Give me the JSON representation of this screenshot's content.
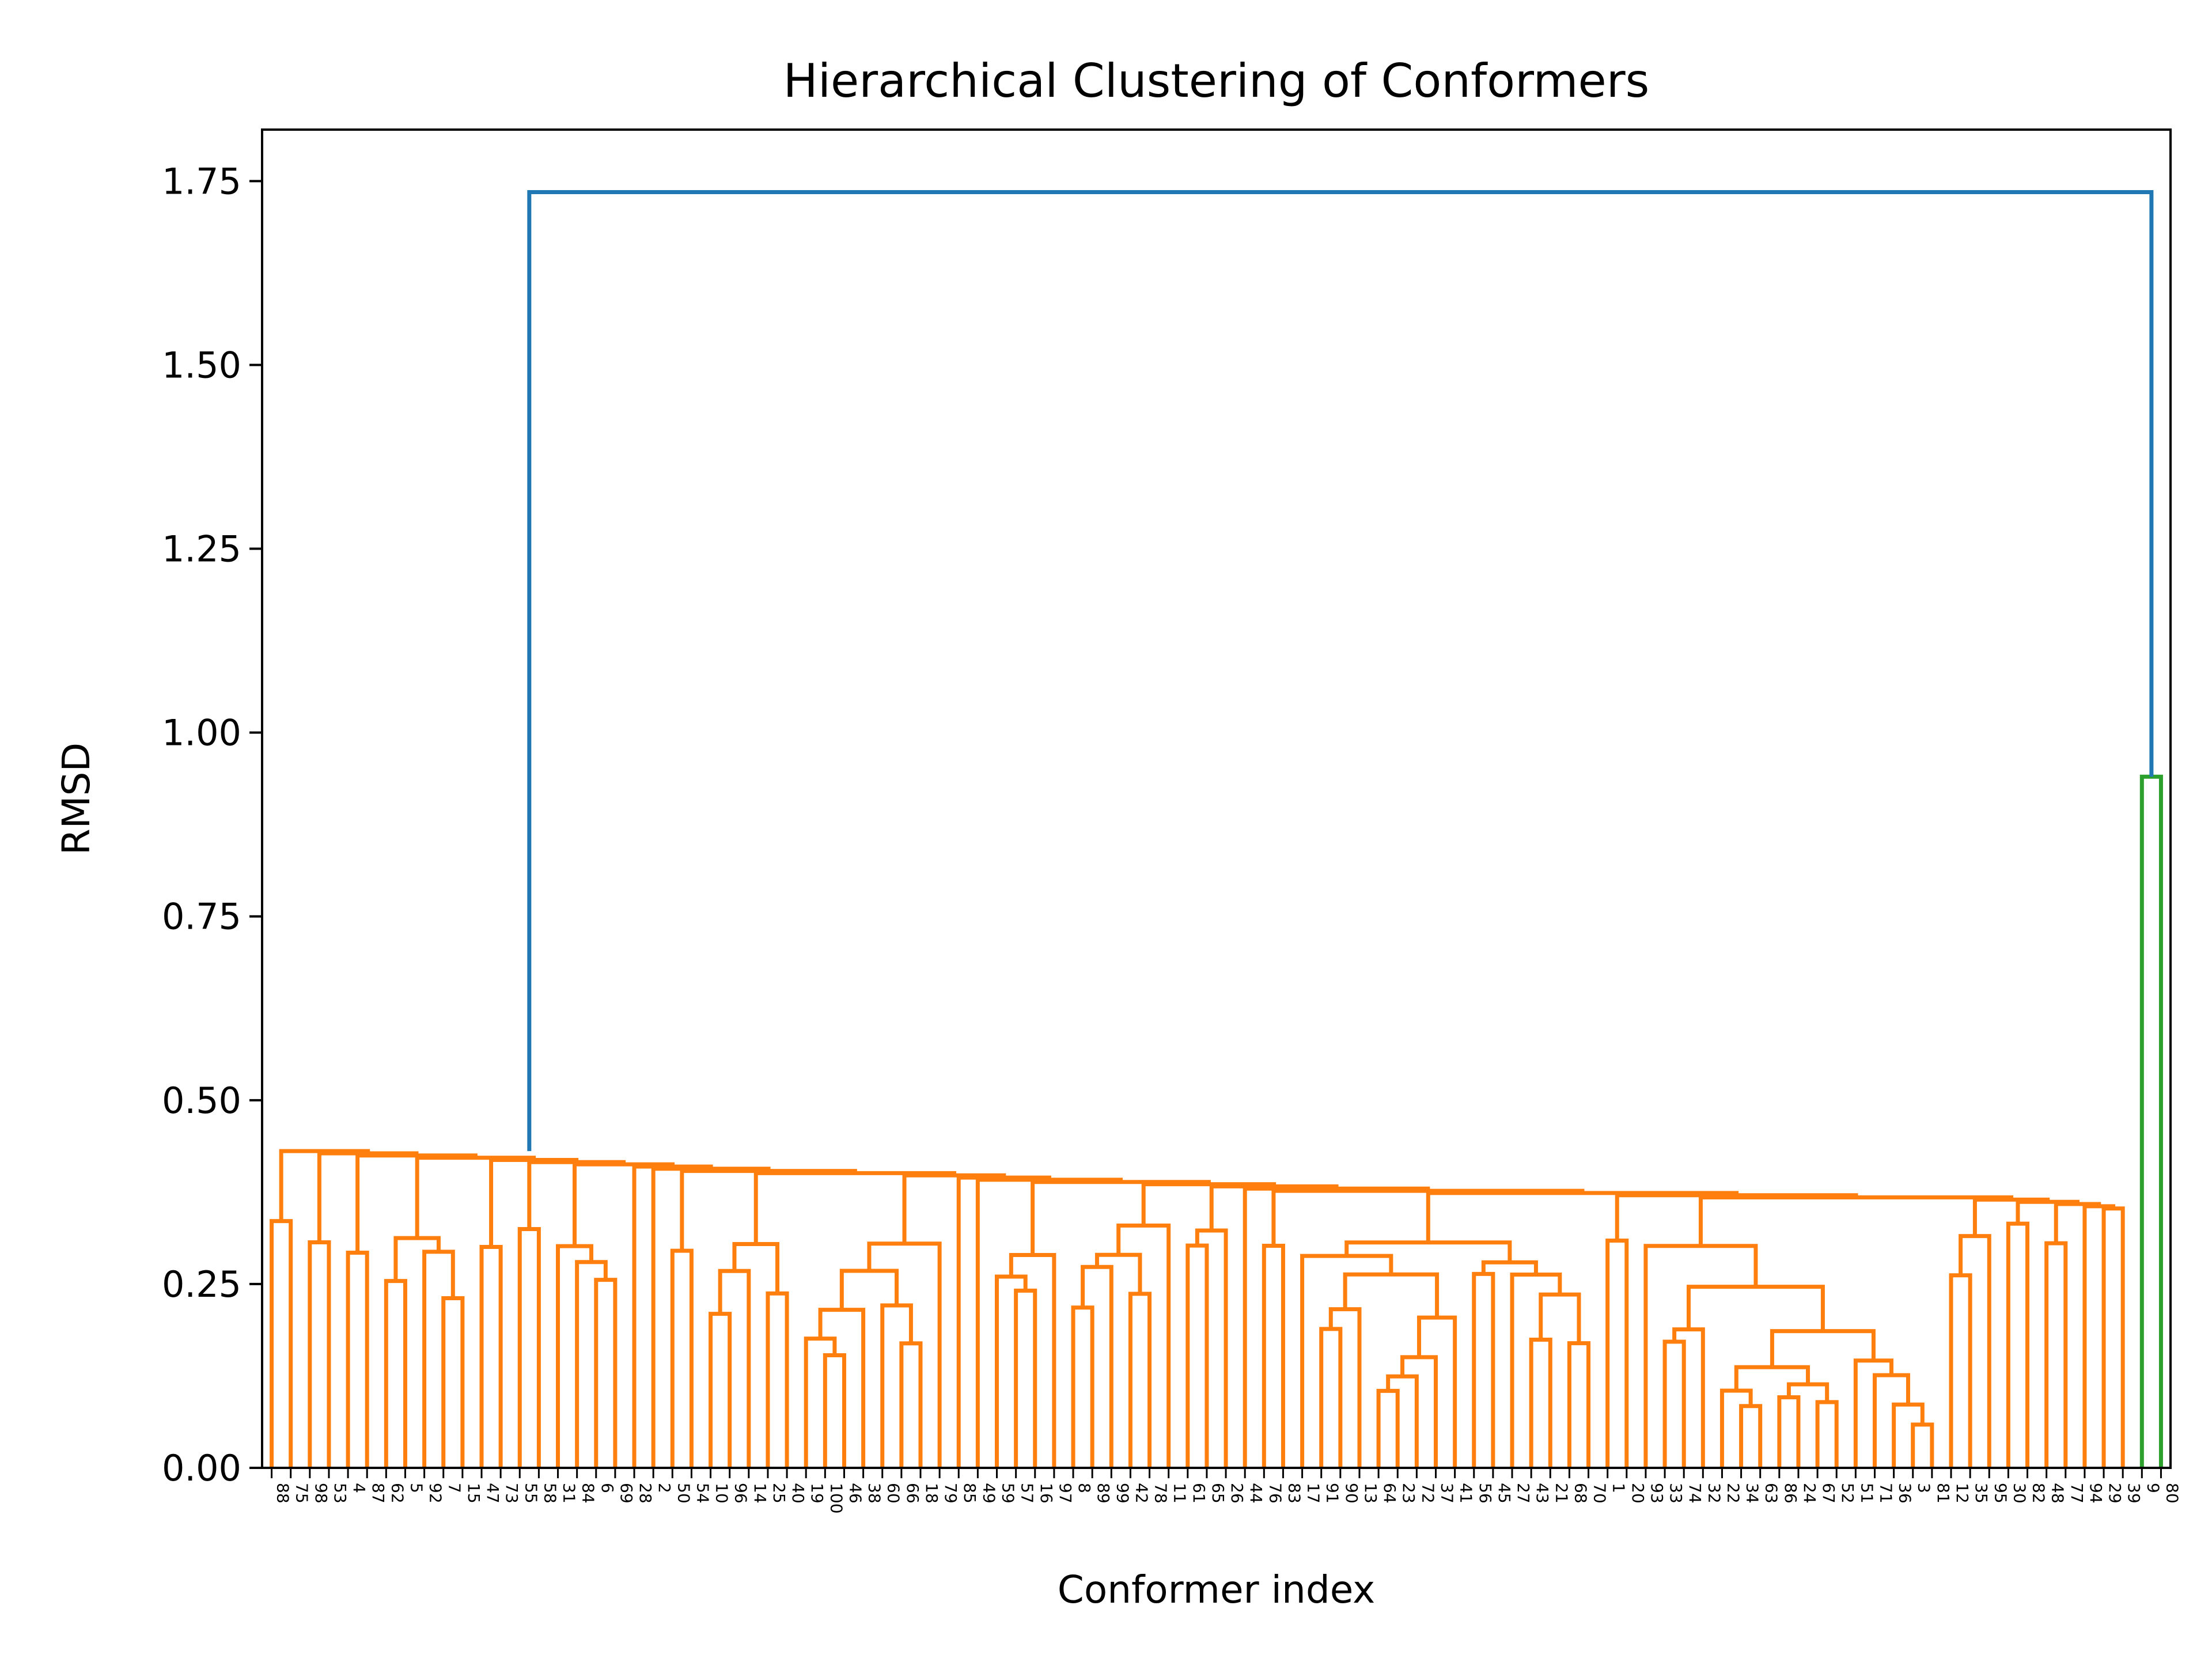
{
  "chart_data": {
    "type": "dendrogram",
    "title": "Hierarchical Clustering of Conformers",
    "xlabel": "Conformer index",
    "ylabel": "RMSD",
    "ylim": [
      0,
      1.82
    ],
    "yticks": [
      "0.00",
      "0.25",
      "0.50",
      "0.75",
      "1.00",
      "1.25",
      "1.50",
      "1.75"
    ],
    "ytick_values": [
      0,
      0.25,
      0.5,
      0.75,
      1.0,
      1.25,
      1.5,
      1.75
    ],
    "grid": false,
    "leaf_labels": [
      "88",
      "75",
      "98",
      "53",
      "4",
      "87",
      "62",
      "5",
      "92",
      "7",
      "15",
      "47",
      "73",
      "55",
      "58",
      "31",
      "84",
      "6",
      "69",
      "28",
      "2",
      "50",
      "54",
      "10",
      "96",
      "14",
      "25",
      "40",
      "19",
      "100",
      "46",
      "38",
      "60",
      "66",
      "18",
      "79",
      "85",
      "49",
      "59",
      "57",
      "16",
      "97",
      "8",
      "89",
      "99",
      "42",
      "78",
      "11",
      "61",
      "65",
      "26",
      "44",
      "76",
      "83",
      "17",
      "91",
      "90",
      "13",
      "64",
      "23",
      "72",
      "37",
      "41",
      "56",
      "45",
      "27",
      "43",
      "21",
      "68",
      "70",
      "1",
      "20",
      "93",
      "33",
      "74",
      "32",
      "22",
      "34",
      "63",
      "86",
      "24",
      "67",
      "52",
      "51",
      "71",
      "36",
      "3",
      "81",
      "12",
      "35",
      "95",
      "30",
      "82",
      "48",
      "77",
      "94",
      "29",
      "39",
      "9",
      "80"
    ],
    "colors": {
      "main_cluster": "#ff7f0e",
      "root_link": "#1f77b4",
      "small_cluster": "#2ca02c",
      "axes": "#000000"
    },
    "root_link_height": 1.735,
    "small_cluster_link_height": 0.94,
    "series": [
      {
        "name": "",
        "color": "#ff7f0e",
        "merge_height_range": [
          0.08,
          0.375
        ]
      },
      {
        "name": "",
        "color": "#2ca02c",
        "merge_height": 0.94
      },
      {
        "name": "",
        "color": "#1f77b4",
        "merge_height": 1.735
      }
    ]
  }
}
